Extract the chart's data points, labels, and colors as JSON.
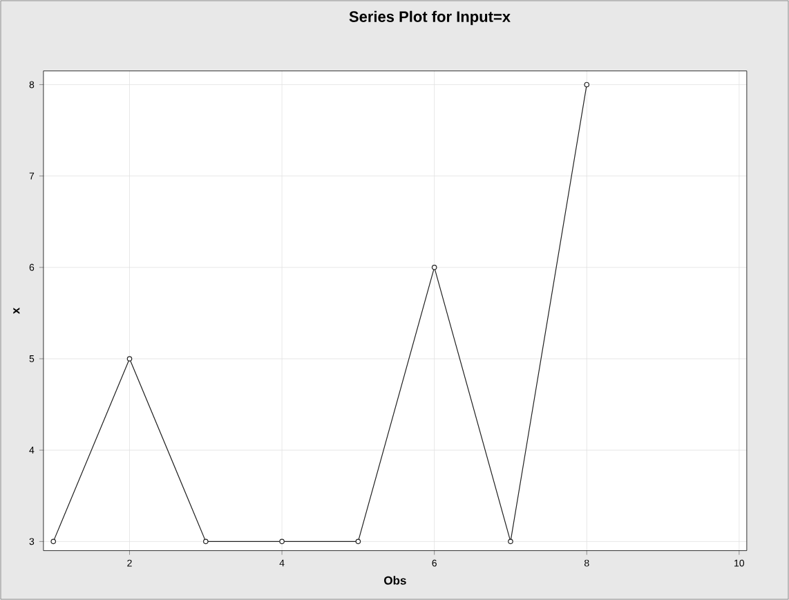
{
  "chart_data": {
    "type": "line",
    "title": "Series Plot for Input=x",
    "xlabel": "Obs",
    "ylabel": "x",
    "x": [
      1,
      2,
      3,
      4,
      5,
      6,
      7,
      8
    ],
    "values": [
      3,
      5,
      3,
      3,
      3,
      6,
      3,
      8
    ],
    "color": "#202020",
    "marker": "circle",
    "grid": true,
    "xlim": [
      0.87,
      10.1
    ],
    "ylim": [
      2.9,
      8.15
    ],
    "xticks": [
      2,
      4,
      6,
      8,
      10
    ],
    "yticks": [
      3,
      4,
      5,
      6,
      7,
      8
    ]
  }
}
